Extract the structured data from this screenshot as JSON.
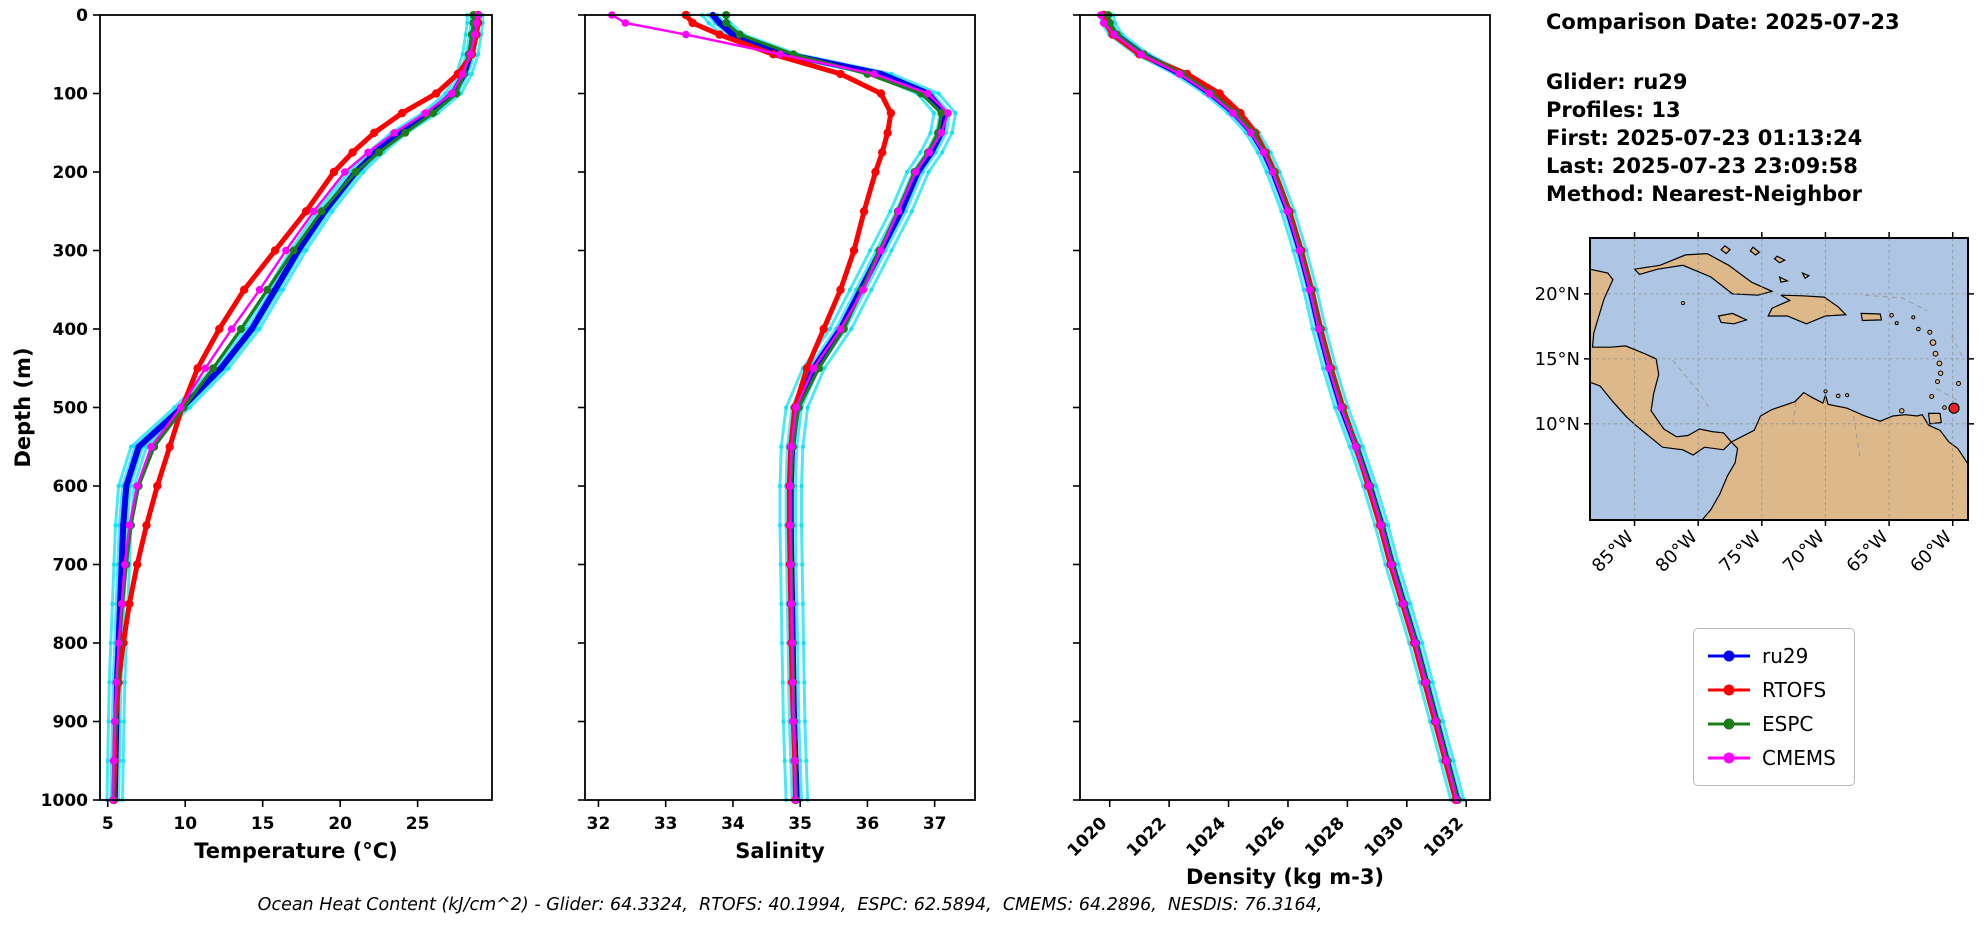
{
  "info": {
    "date": "Comparison Date: 2025-07-23",
    "glider": "Glider: ru29",
    "profiles": "Profiles: 13",
    "first": "First: 2025-07-23 01:13:24",
    "last": "Last: 2025-07-23 23:09:58",
    "method": "Method: Nearest-Neighbor"
  },
  "caption": "Ocean Heat Content (kJ/cm^2) - Glider: 64.3324,  RTOFS: 40.1994,  ESPC: 62.5894,  CMEMS: 64.2896,  NESDIS: 76.3164,",
  "legend": {
    "position": "lower-right",
    "items": [
      {
        "label": "ru29",
        "color": "#0000ee"
      },
      {
        "label": "RTOFS",
        "color": "#ff0000"
      },
      {
        "label": "ESPC",
        "color": "#1a7d1a"
      },
      {
        "label": "CMEMS",
        "color": "#ff00ff"
      }
    ]
  },
  "depths": [
    0,
    10,
    25,
    50,
    75,
    100,
    125,
    150,
    175,
    200,
    250,
    300,
    350,
    400,
    450,
    500,
    550,
    600,
    650,
    700,
    750,
    800,
    850,
    900,
    950,
    1000
  ],
  "chart_data": [
    {
      "type": "line",
      "title": "",
      "xlabel": "Temperature (°C)",
      "ylabel": "Depth (m)",
      "xlim": [
        4.5,
        29.8
      ],
      "ylim": [
        0,
        1000
      ],
      "xticks": [
        5,
        10,
        15,
        20,
        25
      ],
      "yticks": [
        0,
        100,
        200,
        300,
        400,
        500,
        600,
        700,
        800,
        900,
        1000
      ],
      "show_ytick_labels": true,
      "xtick_rotate": false,
      "grid": false,
      "raw": {
        "base": "ru29",
        "color": "#00e0f0",
        "offsets": [
          -0.5,
          -0.25,
          0.25,
          0.5
        ]
      },
      "series": [
        {
          "name": "ru29",
          "color": "#0000ee",
          "width": 6,
          "marker": 3.2,
          "values": [
            28.7,
            28.7,
            28.6,
            28.4,
            28.0,
            27.3,
            25.8,
            23.8,
            22.3,
            21.0,
            19.0,
            17.3,
            15.8,
            14.3,
            12.3,
            9.8,
            7.0,
            6.2,
            6.0,
            5.9,
            5.8,
            5.7,
            5.6,
            5.55,
            5.5,
            5.45
          ]
        },
        {
          "name": "RTOFS",
          "color": "#ff0000",
          "width": 5,
          "marker": 4.2,
          "values": [
            28.9,
            28.9,
            28.8,
            28.5,
            27.6,
            26.2,
            24.0,
            22.2,
            20.8,
            19.6,
            17.8,
            15.8,
            13.8,
            12.2,
            10.8,
            9.8,
            9.0,
            8.2,
            7.5,
            6.9,
            6.4,
            6.0,
            5.7,
            5.5,
            5.45,
            5.4
          ]
        },
        {
          "name": "ESPC",
          "color": "#1a7d1a",
          "width": 3.2,
          "marker": 4.0,
          "values": [
            28.6,
            28.6,
            28.5,
            28.3,
            28.0,
            27.5,
            26.0,
            24.2,
            22.5,
            21.0,
            18.8,
            17.0,
            15.3,
            13.6,
            11.8,
            9.9,
            8.0,
            7.0,
            6.5,
            6.2,
            5.95,
            5.75,
            5.6,
            5.5,
            5.4,
            5.35
          ]
        },
        {
          "name": "CMEMS",
          "color": "#ff00ff",
          "width": 2.4,
          "marker": 3.8,
          "values": [
            28.9,
            28.8,
            28.7,
            28.4,
            27.9,
            27.2,
            25.5,
            23.5,
            21.8,
            20.3,
            18.3,
            16.5,
            14.8,
            13.0,
            11.3,
            9.7,
            7.8,
            6.9,
            6.4,
            6.1,
            5.9,
            5.7,
            5.55,
            5.45,
            5.38,
            5.33
          ]
        }
      ]
    },
    {
      "type": "line",
      "title": "",
      "xlabel": "Salinity",
      "ylabel": "",
      "xlim": [
        31.8,
        37.6
      ],
      "ylim": [
        0,
        1000
      ],
      "xticks": [
        32,
        33,
        34,
        35,
        36,
        37
      ],
      "yticks": [
        0,
        100,
        200,
        300,
        400,
        500,
        600,
        700,
        800,
        900,
        1000
      ],
      "show_ytick_labels": false,
      "xtick_rotate": false,
      "grid": false,
      "raw": {
        "base": "ru29",
        "color": "#00e0f0",
        "offsets": [
          -0.16,
          -0.07,
          0.07,
          0.16
        ]
      },
      "series": [
        {
          "name": "ru29",
          "color": "#0000ee",
          "width": 6,
          "marker": 3.2,
          "values": [
            33.7,
            33.8,
            34.0,
            34.8,
            36.2,
            36.9,
            37.15,
            37.1,
            36.95,
            36.75,
            36.5,
            36.2,
            35.9,
            35.6,
            35.2,
            34.95,
            34.88,
            34.86,
            34.86,
            34.87,
            34.88,
            34.89,
            34.9,
            34.91,
            34.93,
            34.95
          ]
        },
        {
          "name": "RTOFS",
          "color": "#ff0000",
          "width": 5,
          "marker": 4.2,
          "values": [
            33.3,
            33.4,
            33.8,
            34.6,
            35.6,
            36.2,
            36.35,
            36.3,
            36.22,
            36.12,
            35.95,
            35.8,
            35.6,
            35.35,
            35.1,
            34.92,
            34.86,
            34.84,
            34.84,
            34.85,
            34.86,
            34.87,
            34.88,
            34.9,
            34.92,
            34.93
          ]
        },
        {
          "name": "ESPC",
          "color": "#1a7d1a",
          "width": 3.2,
          "marker": 4.0,
          "values": [
            33.9,
            33.9,
            34.1,
            34.9,
            36.0,
            36.8,
            37.1,
            37.05,
            36.9,
            36.7,
            36.45,
            36.18,
            35.92,
            35.65,
            35.28,
            34.98,
            34.89,
            34.86,
            34.86,
            34.87,
            34.88,
            34.89,
            34.9,
            34.91,
            34.92,
            34.94
          ]
        },
        {
          "name": "CMEMS",
          "color": "#ff00ff",
          "width": 2.4,
          "marker": 3.8,
          "values": [
            32.2,
            32.4,
            33.3,
            34.7,
            36.1,
            36.9,
            37.2,
            37.1,
            36.92,
            36.72,
            36.46,
            36.2,
            35.94,
            35.6,
            35.2,
            34.94,
            34.87,
            34.85,
            34.85,
            34.86,
            34.87,
            34.88,
            34.89,
            34.9,
            34.92,
            34.93
          ]
        }
      ]
    },
    {
      "type": "line",
      "title": "",
      "xlabel": "Density (kg m-3)",
      "ylabel": "",
      "xlim": [
        1019.0,
        1032.8
      ],
      "ylim": [
        0,
        1000
      ],
      "xticks": [
        1020,
        1022,
        1024,
        1026,
        1028,
        1030,
        1032
      ],
      "yticks": [
        0,
        100,
        200,
        300,
        400,
        500,
        600,
        700,
        800,
        900,
        1000
      ],
      "show_ytick_labels": false,
      "xtick_rotate": true,
      "grid": false,
      "raw": {
        "base": "ru29",
        "color": "#00e0f0",
        "offsets": [
          -0.22,
          -0.1,
          0.1,
          0.22
        ]
      },
      "series": [
        {
          "name": "ru29",
          "color": "#0000ee",
          "width": 6,
          "marker": 3.2,
          "values": [
            1019.9,
            1019.95,
            1020.2,
            1021.1,
            1022.4,
            1023.4,
            1024.2,
            1024.8,
            1025.2,
            1025.5,
            1026.0,
            1026.4,
            1026.75,
            1027.05,
            1027.4,
            1027.8,
            1028.3,
            1028.75,
            1029.15,
            1029.5,
            1029.9,
            1030.3,
            1030.65,
            1031.0,
            1031.35,
            1031.7
          ]
        },
        {
          "name": "RTOFS",
          "color": "#ff0000",
          "width": 5,
          "marker": 4.2,
          "values": [
            1019.8,
            1019.85,
            1020.1,
            1021.0,
            1022.6,
            1023.7,
            1024.4,
            1024.9,
            1025.25,
            1025.55,
            1026.05,
            1026.45,
            1026.8,
            1027.1,
            1027.45,
            1027.85,
            1028.3,
            1028.7,
            1029.1,
            1029.45,
            1029.85,
            1030.25,
            1030.6,
            1030.95,
            1031.3,
            1031.65
          ]
        },
        {
          "name": "ESPC",
          "color": "#1a7d1a",
          "width": 3.2,
          "marker": 4.0,
          "values": [
            1019.95,
            1020.0,
            1020.25,
            1021.15,
            1022.45,
            1023.45,
            1024.25,
            1024.85,
            1025.22,
            1025.52,
            1026.02,
            1026.42,
            1026.77,
            1027.07,
            1027.42,
            1027.82,
            1028.32,
            1028.77,
            1029.17,
            1029.52,
            1029.92,
            1030.32,
            1030.67,
            1031.02,
            1031.37,
            1031.72
          ]
        },
        {
          "name": "CMEMS",
          "color": "#ff00ff",
          "width": 2.4,
          "marker": 3.8,
          "values": [
            1019.7,
            1019.8,
            1020.15,
            1021.05,
            1022.35,
            1023.35,
            1024.15,
            1024.75,
            1025.18,
            1025.48,
            1025.98,
            1026.38,
            1026.73,
            1027.03,
            1027.38,
            1027.78,
            1028.28,
            1028.73,
            1029.13,
            1029.48,
            1029.88,
            1030.28,
            1030.63,
            1030.98,
            1031.33,
            1031.68
          ]
        }
      ]
    }
  ],
  "map": {
    "extent": {
      "lon_min": -88.5,
      "lon_max": -58.8,
      "lat_min": 2.6,
      "lat_max": 24.3
    },
    "lon_ticks": [
      -85,
      -80,
      -75,
      -70,
      -65,
      -60
    ],
    "lon_tick_labels": [
      "85°W",
      "80°W",
      "75°W",
      "70°W",
      "65°W",
      "60°W"
    ],
    "lat_ticks": [
      10,
      15,
      20
    ],
    "lat_tick_labels": [
      "10°N",
      "15°N",
      "20°N"
    ],
    "ocean_color": "#aec6e4",
    "land_color": "#ddb88a",
    "coast_color": "#000000",
    "grid_color": "#8a8a8a",
    "marker": {
      "lon": -59.9,
      "lat": 11.2,
      "color": "#ee2222"
    },
    "land": [
      [
        [
          -88.5,
          21.9
        ],
        [
          -87.1,
          21.6
        ],
        [
          -86.7,
          21.1
        ],
        [
          -87.4,
          19.6
        ],
        [
          -87.8,
          18.3
        ],
        [
          -88.2,
          17.0
        ],
        [
          -88.3,
          15.9
        ],
        [
          -86.9,
          15.9
        ],
        [
          -85.7,
          16.0
        ],
        [
          -84.2,
          15.4
        ],
        [
          -83.3,
          15.0
        ],
        [
          -83.1,
          13.8
        ],
        [
          -83.5,
          12.3
        ],
        [
          -83.7,
          11.0
        ],
        [
          -82.7,
          9.6
        ],
        [
          -81.7,
          9.0
        ],
        [
          -80.8,
          9.1
        ],
        [
          -79.9,
          9.6
        ],
        [
          -78.9,
          9.4
        ],
        [
          -78.0,
          9.3
        ],
        [
          -77.4,
          8.6
        ],
        [
          -78.0,
          8.0
        ],
        [
          -79.5,
          8.2
        ],
        [
          -80.4,
          7.6
        ],
        [
          -81.2,
          8.0
        ],
        [
          -82.8,
          8.2
        ],
        [
          -84.8,
          9.8
        ],
        [
          -85.6,
          10.5
        ],
        [
          -86.7,
          11.7
        ],
        [
          -87.7,
          12.9
        ],
        [
          -88.5,
          13.2
        ]
      ],
      [
        [
          -77.4,
          8.6
        ],
        [
          -75.6,
          9.5
        ],
        [
          -75.1,
          10.6
        ],
        [
          -74.2,
          11.1
        ],
        [
          -72.4,
          11.7
        ],
        [
          -71.7,
          12.4
        ],
        [
          -71.0,
          12.0
        ],
        [
          -70.2,
          11.6
        ],
        [
          -70.0,
          12.2
        ],
        [
          -69.8,
          11.5
        ],
        [
          -68.3,
          11.2
        ],
        [
          -66.9,
          10.6
        ],
        [
          -65.7,
          10.2
        ],
        [
          -64.7,
          10.6
        ],
        [
          -63.7,
          10.7
        ],
        [
          -62.8,
          10.6
        ],
        [
          -62.4,
          10.7
        ],
        [
          -61.9,
          9.9
        ],
        [
          -61.0,
          9.5
        ],
        [
          -60.3,
          8.6
        ],
        [
          -59.6,
          8.1
        ],
        [
          -58.8,
          6.9
        ],
        [
          -58.8,
          2.6
        ],
        [
          -79.7,
          2.6
        ],
        [
          -79.0,
          3.4
        ],
        [
          -78.3,
          4.6
        ],
        [
          -77.7,
          6.0
        ],
        [
          -77.1,
          7.0
        ],
        [
          -76.9,
          8.1
        ]
      ],
      [
        [
          -85.0,
          21.9
        ],
        [
          -83.0,
          22.2
        ],
        [
          -81.0,
          23.0
        ],
        [
          -79.3,
          23.1
        ],
        [
          -77.6,
          22.2
        ],
        [
          -75.8,
          20.9
        ],
        [
          -74.2,
          20.2
        ],
        [
          -75.3,
          19.9
        ],
        [
          -77.3,
          20.0
        ],
        [
          -79.0,
          21.3
        ],
        [
          -81.2,
          22.2
        ],
        [
          -83.2,
          21.9
        ],
        [
          -84.6,
          21.5
        ]
      ],
      [
        [
          -73.5,
          19.9
        ],
        [
          -71.8,
          19.85
        ],
        [
          -70.1,
          19.75
        ],
        [
          -69.0,
          19.0
        ],
        [
          -68.4,
          18.4
        ],
        [
          -70.0,
          18.3
        ],
        [
          -71.5,
          17.7
        ],
        [
          -73.0,
          18.3
        ],
        [
          -74.5,
          18.3
        ],
        [
          -74.2,
          18.9
        ],
        [
          -72.8,
          19.5
        ]
      ],
      [
        [
          -78.4,
          18.3
        ],
        [
          -77.3,
          18.5
        ],
        [
          -76.2,
          18.0
        ],
        [
          -77.2,
          17.7
        ],
        [
          -78.2,
          17.8
        ]
      ],
      [
        [
          -67.2,
          18.5
        ],
        [
          -65.7,
          18.45
        ],
        [
          -65.6,
          18.0
        ],
        [
          -67.1,
          17.95
        ]
      ],
      [
        [
          -61.9,
          10.8
        ],
        [
          -61.0,
          10.8
        ],
        [
          -60.9,
          10.1
        ],
        [
          -61.8,
          10.0
        ]
      ],
      [
        [
          -77.9,
          23.7
        ],
        [
          -77.5,
          23.4
        ],
        [
          -77.8,
          23.1
        ],
        [
          -78.2,
          23.4
        ]
      ],
      [
        [
          -75.7,
          23.6
        ],
        [
          -75.2,
          23.2
        ],
        [
          -75.5,
          23.0
        ],
        [
          -75.9,
          23.3
        ]
      ],
      [
        [
          -73.8,
          22.9
        ],
        [
          -73.2,
          22.6
        ],
        [
          -73.6,
          22.4
        ],
        [
          -74.0,
          22.7
        ]
      ],
      [
        [
          -73.6,
          21.3
        ],
        [
          -73.0,
          21.0
        ],
        [
          -73.5,
          20.9
        ]
      ],
      [
        [
          -71.8,
          21.6
        ],
        [
          -71.3,
          21.4
        ],
        [
          -71.6,
          21.2
        ]
      ]
    ],
    "islands": [
      [
        -61.8,
        17.05,
        2.0
      ],
      [
        -62.7,
        17.3,
        1.8
      ],
      [
        -61.55,
        16.25,
        2.8
      ],
      [
        -61.35,
        15.4,
        2.4
      ],
      [
        -61.05,
        14.65,
        2.4
      ],
      [
        -60.95,
        13.9,
        2.2
      ],
      [
        -61.2,
        13.25,
        2.0
      ],
      [
        -61.65,
        12.1,
        2.0
      ],
      [
        -59.55,
        13.1,
        2.0
      ],
      [
        -60.65,
        11.25,
        1.8
      ],
      [
        -64.0,
        11.0,
        2.2
      ],
      [
        -69.0,
        12.15,
        1.8
      ],
      [
        -70.0,
        12.5,
        1.6
      ],
      [
        -68.3,
        12.2,
        1.6
      ],
      [
        -81.2,
        19.3,
        1.6
      ],
      [
        -64.8,
        18.35,
        1.8
      ],
      [
        -63.1,
        18.2,
        1.6
      ],
      [
        -64.4,
        17.75,
        1.5
      ]
    ],
    "boundaries": [
      [
        [
          -82.0,
          14.9
        ],
        [
          -80.0,
          12.5
        ],
        [
          -79.0,
          11.0
        ]
      ],
      [
        [
          -66.9,
          19.9
        ],
        [
          -64.0,
          19.7
        ],
        [
          -62.0,
          18.7
        ]
      ],
      [
        [
          -60.1,
          16.8
        ],
        [
          -59.2,
          15.1
        ]
      ],
      [
        [
          -61.3,
          12.7
        ],
        [
          -59.6,
          11.8
        ]
      ],
      [
        [
          -72.3,
          11.7
        ],
        [
          -72.6,
          9.8
        ]
      ],
      [
        [
          -67.8,
          10.6
        ],
        [
          -67.3,
          7.5
        ]
      ]
    ]
  }
}
